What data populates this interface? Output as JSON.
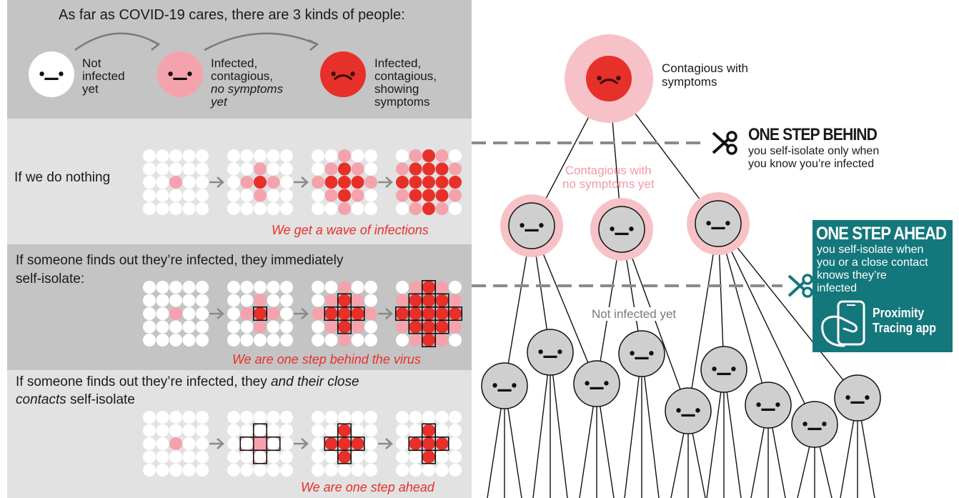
{
  "intro": {
    "title": "As far as COVID-19 cares, there are 3 kinds of people:",
    "kinds": [
      {
        "line1": "Not",
        "line2": "infected",
        "line3": "yet",
        "line4": ""
      },
      {
        "line1": "Infected,",
        "line2": "contagious,",
        "line3": "no symptoms",
        "line4": "yet"
      },
      {
        "line1": "Infected,",
        "line2": "contagious,",
        "line3": "showing",
        "line4": "symptoms"
      }
    ]
  },
  "scenarios": [
    {
      "line1": "If we do nothing",
      "line2": "",
      "result": "We get a wave of infections"
    },
    {
      "line1": "If someone finds out they’re infected, they immediately",
      "line2": "self-isolate:",
      "result": "We are one step behind the virus"
    },
    {
      "line1a": "If someone finds out they’re infected, they ",
      "line1b": "and their close",
      "line2a": "contacts",
      "line2b": " self-isolate",
      "result": "We are one step ahead"
    }
  ],
  "tree": {
    "root_label_1": "Contagious with",
    "root_label_2": "symptoms",
    "mid_label_1": "Contagious with",
    "mid_label_2": "no symptoms yet",
    "low_label": "Not infected yet"
  },
  "behind": {
    "heading": "ONE STEP BEHIND",
    "line1": "you self-isolate only when",
    "line2": "you know you’re infected"
  },
  "ahead": {
    "heading": "ONE STEP AHEAD",
    "line1": "you self-isolate when",
    "line2": "you or a close contact",
    "line3": "knows they’re",
    "line4": "infected",
    "app1": "Proximity",
    "app2": "Tracing app"
  },
  "colors": {
    "red": "#e8302b",
    "pink": "#f4a3ad",
    "teal": "#14777b",
    "grey_face": "#cfcfcf",
    "italic_red": "#e8302b"
  }
}
